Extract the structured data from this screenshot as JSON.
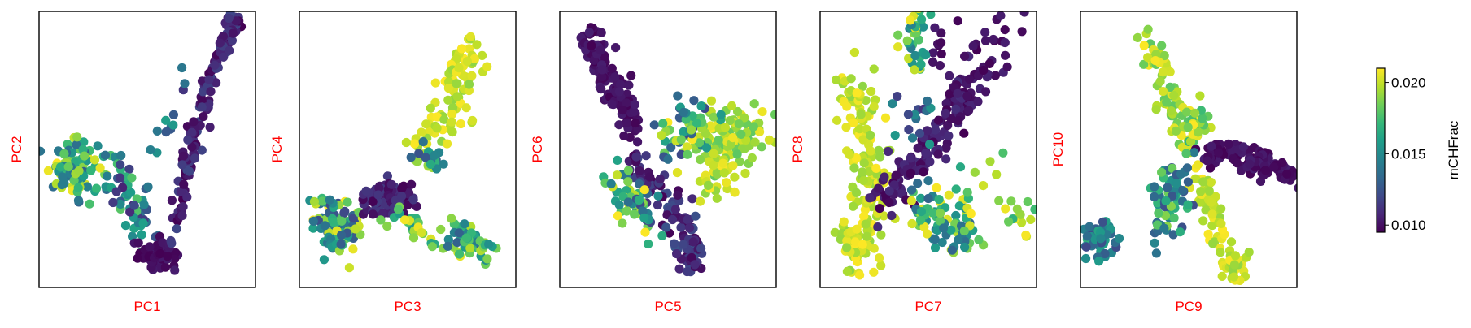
{
  "colors": {
    "axis_label": "#ff0000",
    "frame": "#000000",
    "colormap": "viridis",
    "colormap_stops": [
      "#440154",
      "#482878",
      "#3e4a89",
      "#31688e",
      "#26828e",
      "#1f9e89",
      "#35b779",
      "#6ece58",
      "#b5de2b",
      "#fde725"
    ]
  },
  "colorbar": {
    "label": "mCHFrac",
    "range": [
      0.0095,
      0.021
    ],
    "ticks": [
      {
        "value": 0.01,
        "label": "0.010"
      },
      {
        "value": 0.015,
        "label": "0.015"
      },
      {
        "value": 0.02,
        "label": "0.020"
      }
    ]
  },
  "chart_data": [
    {
      "type": "scatter",
      "xlabel": "PC1",
      "ylabel": "PC2",
      "ticks_shown": false,
      "xlim": [
        0,
        100
      ],
      "ylim": [
        0,
        100
      ],
      "color_variable": "mCHFrac",
      "clusters": [
        {
          "points": [
            [
              14,
              46
            ],
            [
              20,
              48
            ],
            [
              15,
              38
            ],
            [
              22,
              44
            ]
          ],
          "spread": [
            5,
            4
          ],
          "n": 90,
          "color": [
            0.013,
            0.021
          ]
        },
        {
          "points": [
            [
              30,
              48
            ],
            [
              40,
              38
            ],
            [
              45,
              28
            ],
            [
              50,
              20
            ]
          ],
          "spread": [
            4,
            4
          ],
          "n": 60,
          "color": [
            0.0105,
            0.018
          ]
        },
        {
          "points": [
            [
              48,
              14
            ],
            [
              55,
              12
            ],
            [
              60,
              11
            ]
          ],
          "spread": [
            3,
            2
          ],
          "n": 50,
          "color": [
            0.0095,
            0.0105
          ]
        },
        {
          "points": [
            [
              62,
              16
            ],
            [
              68,
              40
            ],
            [
              74,
              60
            ],
            [
              80,
              78
            ],
            [
              88,
              92
            ],
            [
              92,
              98
            ]
          ],
          "spread": [
            2,
            2
          ],
          "n": 150,
          "color": [
            0.0095,
            0.012
          ]
        },
        {
          "points": [
            [
              58,
              55
            ],
            [
              62,
              62
            ],
            [
              55,
              50
            ],
            [
              68,
              80
            ]
          ],
          "spread": [
            2,
            2
          ],
          "n": 12,
          "color": [
            0.011,
            0.016
          ]
        }
      ]
    },
    {
      "type": "scatter",
      "xlabel": "PC3",
      "ylabel": "PC4",
      "ticks_shown": false,
      "xlim": [
        0,
        100
      ],
      "ylim": [
        0,
        100
      ],
      "color_variable": "mCHFrac",
      "clusters": [
        {
          "points": [
            [
              78,
              88
            ],
            [
              75,
              75
            ],
            [
              70,
              65
            ],
            [
              62,
              55
            ],
            [
              58,
              48
            ]
          ],
          "spread": [
            4,
            4
          ],
          "n": 100,
          "color": [
            0.019,
            0.021
          ]
        },
        {
          "points": [
            [
              12,
              30
            ],
            [
              15,
              20
            ],
            [
              22,
              24
            ],
            [
              18,
              14
            ]
          ],
          "spread": [
            5,
            4
          ],
          "n": 110,
          "color": [
            0.012,
            0.021
          ]
        },
        {
          "points": [
            [
              32,
              32
            ],
            [
              40,
              33
            ],
            [
              48,
              32
            ]
          ],
          "spread": [
            5,
            3
          ],
          "n": 80,
          "color": [
            0.0095,
            0.0115
          ]
        },
        {
          "points": [
            [
              72,
              20
            ],
            [
              80,
              17
            ],
            [
              85,
              14
            ]
          ],
          "spread": [
            4,
            3
          ],
          "n": 60,
          "color": [
            0.013,
            0.021
          ]
        },
        {
          "points": [
            [
              42,
              28
            ],
            [
              50,
              24
            ],
            [
              60,
              20
            ]
          ],
          "spread": [
            4,
            3
          ],
          "n": 25,
          "color": [
            0.015,
            0.021
          ]
        },
        {
          "points": [
            [
              55,
              45
            ],
            [
              60,
              50
            ],
            [
              66,
              40
            ]
          ],
          "spread": [
            3,
            3
          ],
          "n": 15,
          "color": [
            0.012,
            0.017
          ]
        }
      ]
    },
    {
      "type": "scatter",
      "xlabel": "PC5",
      "ylabel": "PC6",
      "ticks_shown": false,
      "xlim": [
        0,
        100
      ],
      "ylim": [
        0,
        100
      ],
      "color_variable": "mCHFrac",
      "clusters": [
        {
          "points": [
            [
              12,
              92
            ],
            [
              18,
              82
            ],
            [
              25,
              72
            ],
            [
              30,
              65
            ],
            [
              35,
              55
            ]
          ],
          "spread": [
            2.5,
            3
          ],
          "n": 150,
          "color": [
            0.0095,
            0.0105
          ]
        },
        {
          "points": [
            [
              35,
              45
            ],
            [
              45,
              35
            ],
            [
              55,
              25
            ],
            [
              60,
              15
            ],
            [
              62,
              8
            ]
          ],
          "spread": [
            3,
            4
          ],
          "n": 110,
          "color": [
            0.0095,
            0.0125
          ]
        },
        {
          "points": [
            [
              28,
              40
            ],
            [
              35,
              30
            ],
            [
              40,
              22
            ]
          ],
          "spread": [
            5,
            5
          ],
          "n": 60,
          "color": [
            0.012,
            0.021
          ]
        },
        {
          "points": [
            [
              65,
              55
            ],
            [
              75,
              50
            ],
            [
              82,
              55
            ],
            [
              90,
              58
            ]
          ],
          "spread": [
            6,
            5
          ],
          "n": 110,
          "color": [
            0.018,
            0.021
          ]
        },
        {
          "points": [
            [
              50,
              50
            ],
            [
              58,
              58
            ],
            [
              65,
              60
            ]
          ],
          "spread": [
            5,
            5
          ],
          "n": 60,
          "color": [
            0.012,
            0.021
          ]
        },
        {
          "points": [
            [
              70,
              40
            ],
            [
              80,
              40
            ],
            [
              65,
              35
            ]
          ],
          "spread": [
            4,
            4
          ],
          "n": 25,
          "color": [
            0.019,
            0.021
          ]
        }
      ]
    },
    {
      "type": "scatter",
      "xlabel": "PC7",
      "ylabel": "PC8",
      "ticks_shown": false,
      "xlim": [
        0,
        100
      ],
      "ylim": [
        0,
        100
      ],
      "color_variable": "mCHFrac",
      "clusters": [
        {
          "points": [
            [
              12,
              75
            ],
            [
              18,
              60
            ],
            [
              22,
              50
            ],
            [
              25,
              35
            ],
            [
              20,
              20
            ],
            [
              15,
              10
            ]
          ],
          "spread": [
            5,
            5
          ],
          "n": 170,
          "color": [
            0.019,
            0.021
          ]
        },
        {
          "points": [
            [
              28,
              30
            ],
            [
              35,
              38
            ],
            [
              45,
              45
            ],
            [
              55,
              55
            ],
            [
              65,
              68
            ],
            [
              75,
              80
            ]
          ],
          "spread": [
            4,
            3
          ],
          "n": 160,
          "color": [
            0.0095,
            0.011
          ]
        },
        {
          "points": [
            [
              50,
              90
            ],
            [
              60,
              86
            ],
            [
              75,
              82
            ],
            [
              85,
              90
            ],
            [
              95,
              100
            ]
          ],
          "spread": [
            4,
            5
          ],
          "n": 30,
          "color": [
            0.0095,
            0.0105
          ]
        },
        {
          "points": [
            [
              40,
              92
            ],
            [
              45,
              85
            ],
            [
              42,
              98
            ],
            [
              47,
              80
            ]
          ],
          "spread": [
            3,
            4
          ],
          "n": 40,
          "color": [
            0.014,
            0.021
          ]
        },
        {
          "points": [
            [
              45,
              30
            ],
            [
              55,
              25
            ],
            [
              65,
              20
            ],
            [
              60,
              30
            ]
          ],
          "spread": [
            6,
            5
          ],
          "n": 90,
          "color": [
            0.013,
            0.021
          ]
        },
        {
          "points": [
            [
              65,
              50
            ],
            [
              80,
              40
            ],
            [
              88,
              30
            ],
            [
              95,
              20
            ]
          ],
          "spread": [
            5,
            6
          ],
          "n": 20,
          "color": [
            0.016,
            0.021
          ]
        },
        {
          "points": [
            [
              38,
              68
            ],
            [
              45,
              55
            ],
            [
              50,
              70
            ]
          ],
          "spread": [
            3,
            4
          ],
          "n": 15,
          "color": [
            0.011,
            0.016
          ]
        }
      ]
    },
    {
      "type": "scatter",
      "xlabel": "PC9",
      "ylabel": "PC10",
      "ticks_shown": false,
      "xlim": [
        0,
        100
      ],
      "ylim": [
        0,
        100
      ],
      "color_variable": "mCHFrac",
      "clusters": [
        {
          "points": [
            [
              30,
              92
            ],
            [
              36,
              80
            ],
            [
              42,
              65
            ],
            [
              48,
              52
            ]
          ],
          "spread": [
            2.5,
            3
          ],
          "n": 70,
          "color": [
            0.018,
            0.021
          ]
        },
        {
          "points": [
            [
              52,
              42
            ],
            [
              58,
              32
            ],
            [
              64,
              20
            ],
            [
              70,
              10
            ],
            [
              73,
              5
            ]
          ],
          "spread": [
            2.5,
            3
          ],
          "n": 80,
          "color": [
            0.019,
            0.021
          ]
        },
        {
          "points": [
            [
              55,
              50
            ],
            [
              70,
              48
            ],
            [
              85,
              45
            ],
            [
              98,
              40
            ]
          ],
          "spread": [
            3,
            2.5
          ],
          "n": 110,
          "color": [
            0.0095,
            0.0105
          ]
        },
        {
          "points": [
            [
              38,
              35
            ],
            [
              45,
              40
            ],
            [
              42,
              25
            ],
            [
              32,
              20
            ]
          ],
          "spread": [
            4,
            5
          ],
          "n": 70,
          "color": [
            0.012,
            0.019
          ]
        },
        {
          "points": [
            [
              5,
              18
            ],
            [
              10,
              15
            ],
            [
              12,
              22
            ]
          ],
          "spread": [
            3,
            3
          ],
          "n": 40,
          "color": [
            0.012,
            0.017
          ]
        },
        {
          "points": [
            [
              50,
              60
            ],
            [
              58,
              62
            ],
            [
              48,
              56
            ]
          ],
          "spread": [
            3,
            3
          ],
          "n": 30,
          "color": [
            0.017,
            0.021
          ]
        }
      ]
    }
  ]
}
